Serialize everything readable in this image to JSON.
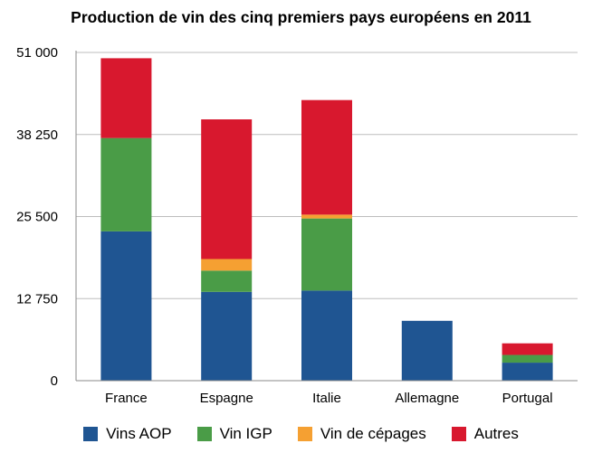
{
  "chart_data": {
    "type": "bar",
    "stacked": true,
    "title": "Production de vin des cinq premiers pays européens en 2011",
    "xlabel": "",
    "ylabel": "",
    "categories": [
      "France",
      "Espagne",
      "Italie",
      "Allemagne",
      "Portugal"
    ],
    "series": [
      {
        "name": "Vins AOP",
        "color": "#1f5592",
        "values": [
          23200,
          13800,
          14000,
          9300,
          2800
        ]
      },
      {
        "name": "Vin IGP",
        "color": "#4a9c47",
        "values": [
          14500,
          3300,
          11200,
          0,
          1200
        ]
      },
      {
        "name": "Vin de cépages",
        "color": "#f5a032",
        "values": [
          0,
          1800,
          600,
          0,
          0
        ]
      },
      {
        "name": "Autres",
        "color": "#d8182e",
        "values": [
          12400,
          21700,
          17800,
          0,
          1800
        ]
      }
    ],
    "yticks": [
      "0",
      "12 750",
      "25 500",
      "38 250",
      "51 000"
    ],
    "yticks_values": [
      0,
      12750,
      25500,
      38250,
      51000
    ],
    "ylim": [
      0,
      51000
    ],
    "grid": true,
    "legend_position": "bottom"
  }
}
